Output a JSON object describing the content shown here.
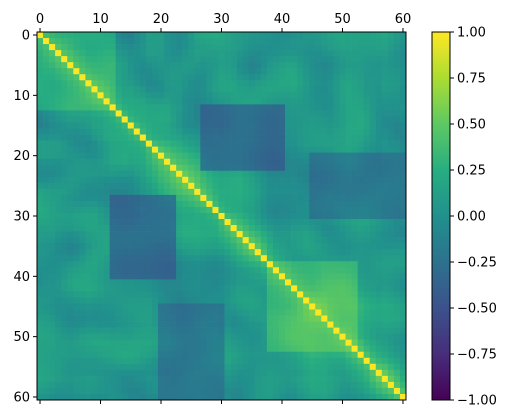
{
  "chart_data": {
    "type": "heatmap",
    "title": "",
    "xlabel": "",
    "ylabel": "",
    "matrix_size": 61,
    "cells_shown": "correlation-style matrix, diagonal = 1.00",
    "x_ticks": [
      0,
      10,
      20,
      30,
      40,
      50,
      60
    ],
    "y_ticks": [
      0,
      10,
      20,
      30,
      40,
      50,
      60
    ],
    "x_axis_position": "top",
    "colormap": "viridis",
    "vmin": -1.0,
    "vmax": 1.0,
    "colorbar_ticks": [
      "1.00",
      "0.75",
      "0.50",
      "0.25",
      "0.00",
      "−0.25",
      "−0.50",
      "−0.75",
      "−1.00"
    ],
    "colorbar_tick_values": [
      1.0,
      0.75,
      0.5,
      0.25,
      0.0,
      -0.25,
      -0.5,
      -0.75,
      -1.0
    ],
    "pattern": {
      "diagonal": 1.0,
      "near_diagonal_band": 0.6,
      "background_mean": 0.05,
      "negative_regions": [
        {
          "rows": [
            12,
            22
          ],
          "cols": [
            27,
            40
          ],
          "value": -0.45
        },
        {
          "rows": [
            27,
            40
          ],
          "cols": [
            12,
            22
          ],
          "value": -0.45
        },
        {
          "rows": [
            45,
            60
          ],
          "cols": [
            20,
            30
          ],
          "value": -0.3
        },
        {
          "rows": [
            20,
            30
          ],
          "cols": [
            45,
            60
          ],
          "value": -0.3
        }
      ],
      "positive_regions": [
        {
          "rows": [
            38,
            52
          ],
          "cols": [
            38,
            52
          ],
          "value": 0.45
        },
        {
          "rows": [
            0,
            12
          ],
          "cols": [
            0,
            12
          ],
          "value": 0.35
        }
      ]
    },
    "grid": false,
    "legend": "colorbar-right"
  }
}
